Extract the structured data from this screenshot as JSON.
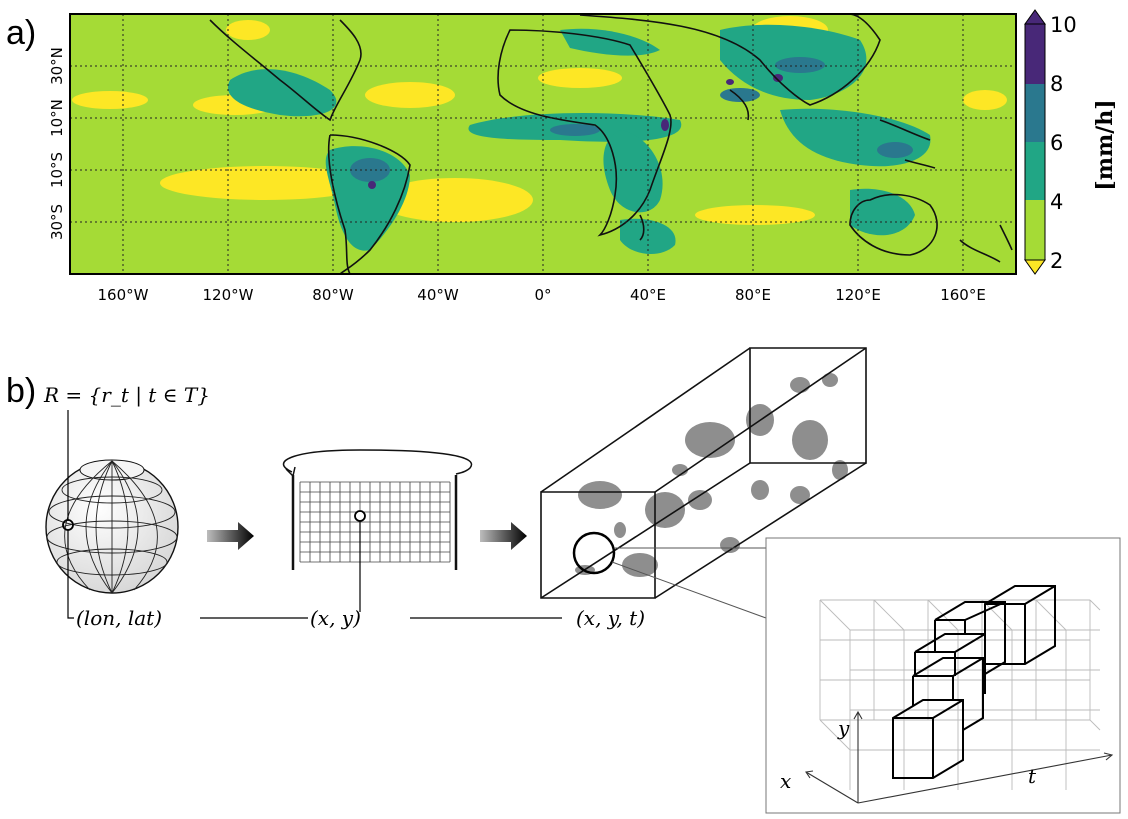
{
  "panel_a": {
    "label": "a)",
    "lon_ticks": [
      "160°W",
      "120°W",
      "80°W",
      "40°W",
      "0°",
      "40°E",
      "80°E",
      "120°E",
      "160°E"
    ],
    "lat_ticks": [
      "30°N",
      "10°N",
      "10°S",
      "30°S"
    ],
    "colorbar": {
      "ticks": [
        "10",
        "8",
        "6",
        "4",
        "2"
      ],
      "unit": "[mm/h]",
      "colors": [
        "#fde725",
        "#a5db36",
        "#21a685",
        "#2a788e",
        "#482878"
      ]
    }
  },
  "panel_b": {
    "label": "b)",
    "set_label": "R = {r_t | t ∈ T}",
    "coord_sphere": "(lon, lat)",
    "coord_grid": "(x, y)",
    "coord_volume": "(x, y, t)",
    "axis_x": "x",
    "axis_y": "y",
    "axis_t": "t"
  }
}
